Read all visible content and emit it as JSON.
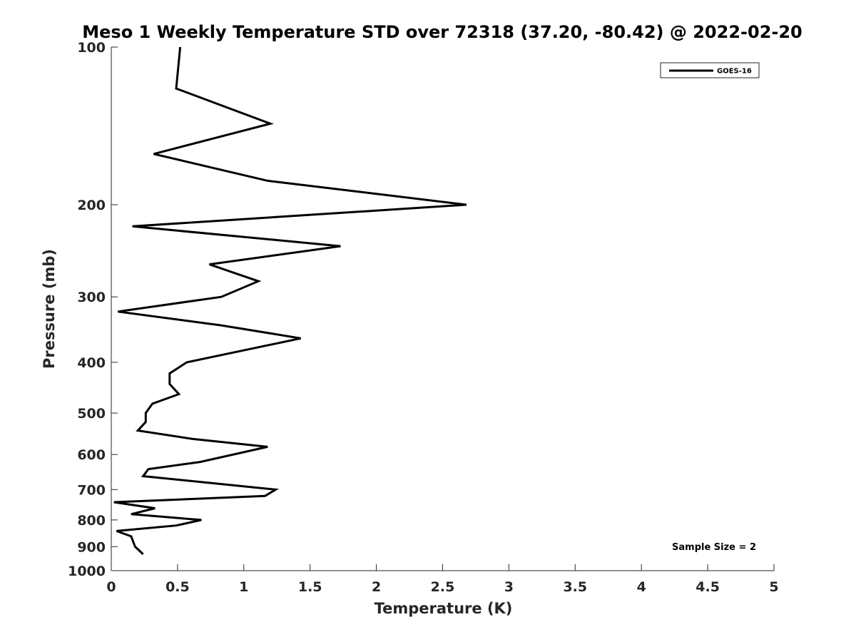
{
  "chart_data": {
    "type": "line",
    "title": "Meso 1 Weekly Temperature STD over 72318 (37.20, -80.42) @ 2022-02-20",
    "xlabel": "Temperature (K)",
    "ylabel": "Pressure (mb)",
    "xlim": [
      0,
      5
    ],
    "ylim": [
      100,
      1000
    ],
    "y_scale": "log",
    "y_reversed": true,
    "x_ticks": [
      "0",
      "0.5",
      "1",
      "1.5",
      "2",
      "2.5",
      "3",
      "3.5",
      "4",
      "4.5",
      "5"
    ],
    "y_ticks": [
      "100",
      "200",
      "300",
      "400",
      "500",
      "600",
      "700",
      "800",
      "900",
      "1000"
    ],
    "grid": false,
    "legend_position": "top-right",
    "annotation": "Sample Size = 2",
    "series": [
      {
        "name": "GOES-16",
        "color": "#000000",
        "points": [
          {
            "x": 0.52,
            "p": 100
          },
          {
            "x": 0.49,
            "p": 120
          },
          {
            "x": 1.2,
            "p": 140
          },
          {
            "x": 0.32,
            "p": 160
          },
          {
            "x": 1.18,
            "p": 180
          },
          {
            "x": 2.68,
            "p": 200
          },
          {
            "x": 0.16,
            "p": 220
          },
          {
            "x": 1.73,
            "p": 240
          },
          {
            "x": 0.74,
            "p": 260
          },
          {
            "x": 1.11,
            "p": 280
          },
          {
            "x": 0.83,
            "p": 300
          },
          {
            "x": 0.05,
            "p": 320
          },
          {
            "x": 0.83,
            "p": 340
          },
          {
            "x": 1.43,
            "p": 360
          },
          {
            "x": 0.57,
            "p": 400
          },
          {
            "x": 0.44,
            "p": 420
          },
          {
            "x": 0.44,
            "p": 440
          },
          {
            "x": 0.51,
            "p": 460
          },
          {
            "x": 0.31,
            "p": 480
          },
          {
            "x": 0.26,
            "p": 500
          },
          {
            "x": 0.26,
            "p": 520
          },
          {
            "x": 0.2,
            "p": 540
          },
          {
            "x": 0.61,
            "p": 560
          },
          {
            "x": 1.18,
            "p": 580
          },
          {
            "x": 0.67,
            "p": 620
          },
          {
            "x": 0.28,
            "p": 640
          },
          {
            "x": 0.24,
            "p": 660
          },
          {
            "x": 1.24,
            "p": 700
          },
          {
            "x": 1.16,
            "p": 720
          },
          {
            "x": 0.02,
            "p": 740
          },
          {
            "x": 0.33,
            "p": 760
          },
          {
            "x": 0.15,
            "p": 780
          },
          {
            "x": 0.68,
            "p": 800
          },
          {
            "x": 0.49,
            "p": 820
          },
          {
            "x": 0.04,
            "p": 840
          },
          {
            "x": 0.15,
            "p": 860
          },
          {
            "x": 0.18,
            "p": 900
          },
          {
            "x": 0.24,
            "p": 930
          }
        ]
      }
    ]
  }
}
